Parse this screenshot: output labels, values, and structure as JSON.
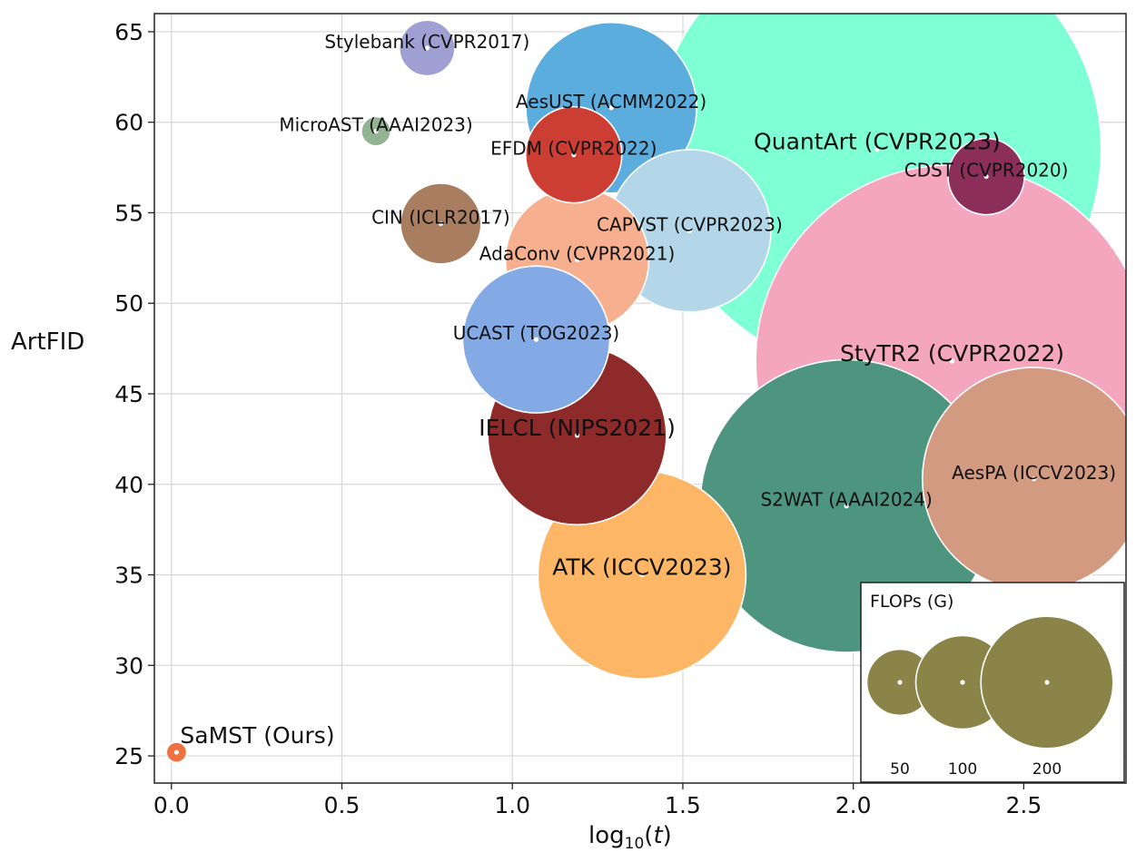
{
  "chart_data": {
    "type": "scatter",
    "subtype": "bubble",
    "xlabel_base": "log",
    "xlabel_sub": "10",
    "xlabel_open": "(",
    "xlabel_var": "t",
    "xlabel_close": ")",
    "ylabel": "ArtFID",
    "xlim": [
      -0.05,
      2.8
    ],
    "ylim": [
      23.5,
      66
    ],
    "x_ticks": [
      0.0,
      0.5,
      1.0,
      1.5,
      2.0,
      2.5
    ],
    "x_tick_labels": [
      "0.0",
      "0.5",
      "1.0",
      "1.5",
      "2.0",
      "2.5"
    ],
    "y_ticks": [
      25,
      30,
      35,
      40,
      45,
      50,
      55,
      60,
      65
    ],
    "y_tick_labels": [
      "25",
      "30",
      "35",
      "40",
      "45",
      "50",
      "55",
      "60",
      "65"
    ],
    "grid": true,
    "points": [
      {
        "label": "QuantArt (CVPR2023)",
        "x": 2.07,
        "y": 58.5,
        "flops": 585,
        "color": "#7fffd4",
        "big": true
      },
      {
        "label": "StyTR2 (CVPR2022)",
        "x": 2.29,
        "y": 46.8,
        "flops": 450,
        "color": "#f4a6be",
        "big": true
      },
      {
        "label": "S2WAT (AAAI2024)",
        "x": 1.98,
        "y": 38.8,
        "flops": 250,
        "color": "#4e9580",
        "big": false
      },
      {
        "label": "AesPA (ICCV2023)",
        "x": 2.53,
        "y": 40.3,
        "flops": 145,
        "color": "#d39a82",
        "big": false
      },
      {
        "label": "CDST (CVPR2020)",
        "x": 2.39,
        "y": 57.0,
        "flops": 17,
        "color": "#8b2e5a",
        "big": false
      },
      {
        "label": "AesUST (ACMM2022)",
        "x": 1.29,
        "y": 60.8,
        "flops": 85,
        "color": "#5badde",
        "big": false
      },
      {
        "label": "CAPVST (CVPR2023)",
        "x": 1.52,
        "y": 54.0,
        "flops": 77,
        "color": "#b3d6e8",
        "big": false
      },
      {
        "label": "AdaConv (CVPR2021)",
        "x": 1.19,
        "y": 52.4,
        "flops": 60,
        "color": "#f6b08f",
        "big": false
      },
      {
        "label": "ATK (ICCV2023)",
        "x": 1.38,
        "y": 35.0,
        "flops": 126,
        "color": "#fcb665",
        "big": true
      },
      {
        "label": "IELCL (NIPS2021)",
        "x": 1.19,
        "y": 42.7,
        "flops": 93,
        "color": "#8e2a2a",
        "big": true
      },
      {
        "label": "UCAST (TOG2023)",
        "x": 1.07,
        "y": 48.0,
        "flops": 63,
        "color": "#84aae6",
        "big": false
      },
      {
        "label": "EFDM (CVPR2022)",
        "x": 1.18,
        "y": 58.2,
        "flops": 27,
        "color": "#cc3e33",
        "big": false
      },
      {
        "label": "Stylebank (CVPR2017)",
        "x": 0.75,
        "y": 64.1,
        "flops": 9,
        "color": "#a09fd3",
        "big": false
      },
      {
        "label": "MicroAST (AAAI2023)",
        "x": 0.6,
        "y": 59.5,
        "flops": 2.5,
        "color": "#93b393",
        "big": false
      },
      {
        "label": "CIN (ICLR2017)",
        "x": 0.79,
        "y": 54.4,
        "flops": 19,
        "color": "#a97e60",
        "big": false
      },
      {
        "label": "SaMST (Ours)",
        "x": 0.015,
        "y": 25.2,
        "flops": 1.2,
        "color": "#f07040",
        "big": true
      }
    ],
    "legend": {
      "title": "FLOPs (G)",
      "placement": "bottom-right",
      "color": "#8a8449",
      "entries": [
        {
          "label": "50",
          "flops": 50
        },
        {
          "label": "100",
          "flops": 100
        },
        {
          "label": "200",
          "flops": 200
        }
      ]
    }
  }
}
